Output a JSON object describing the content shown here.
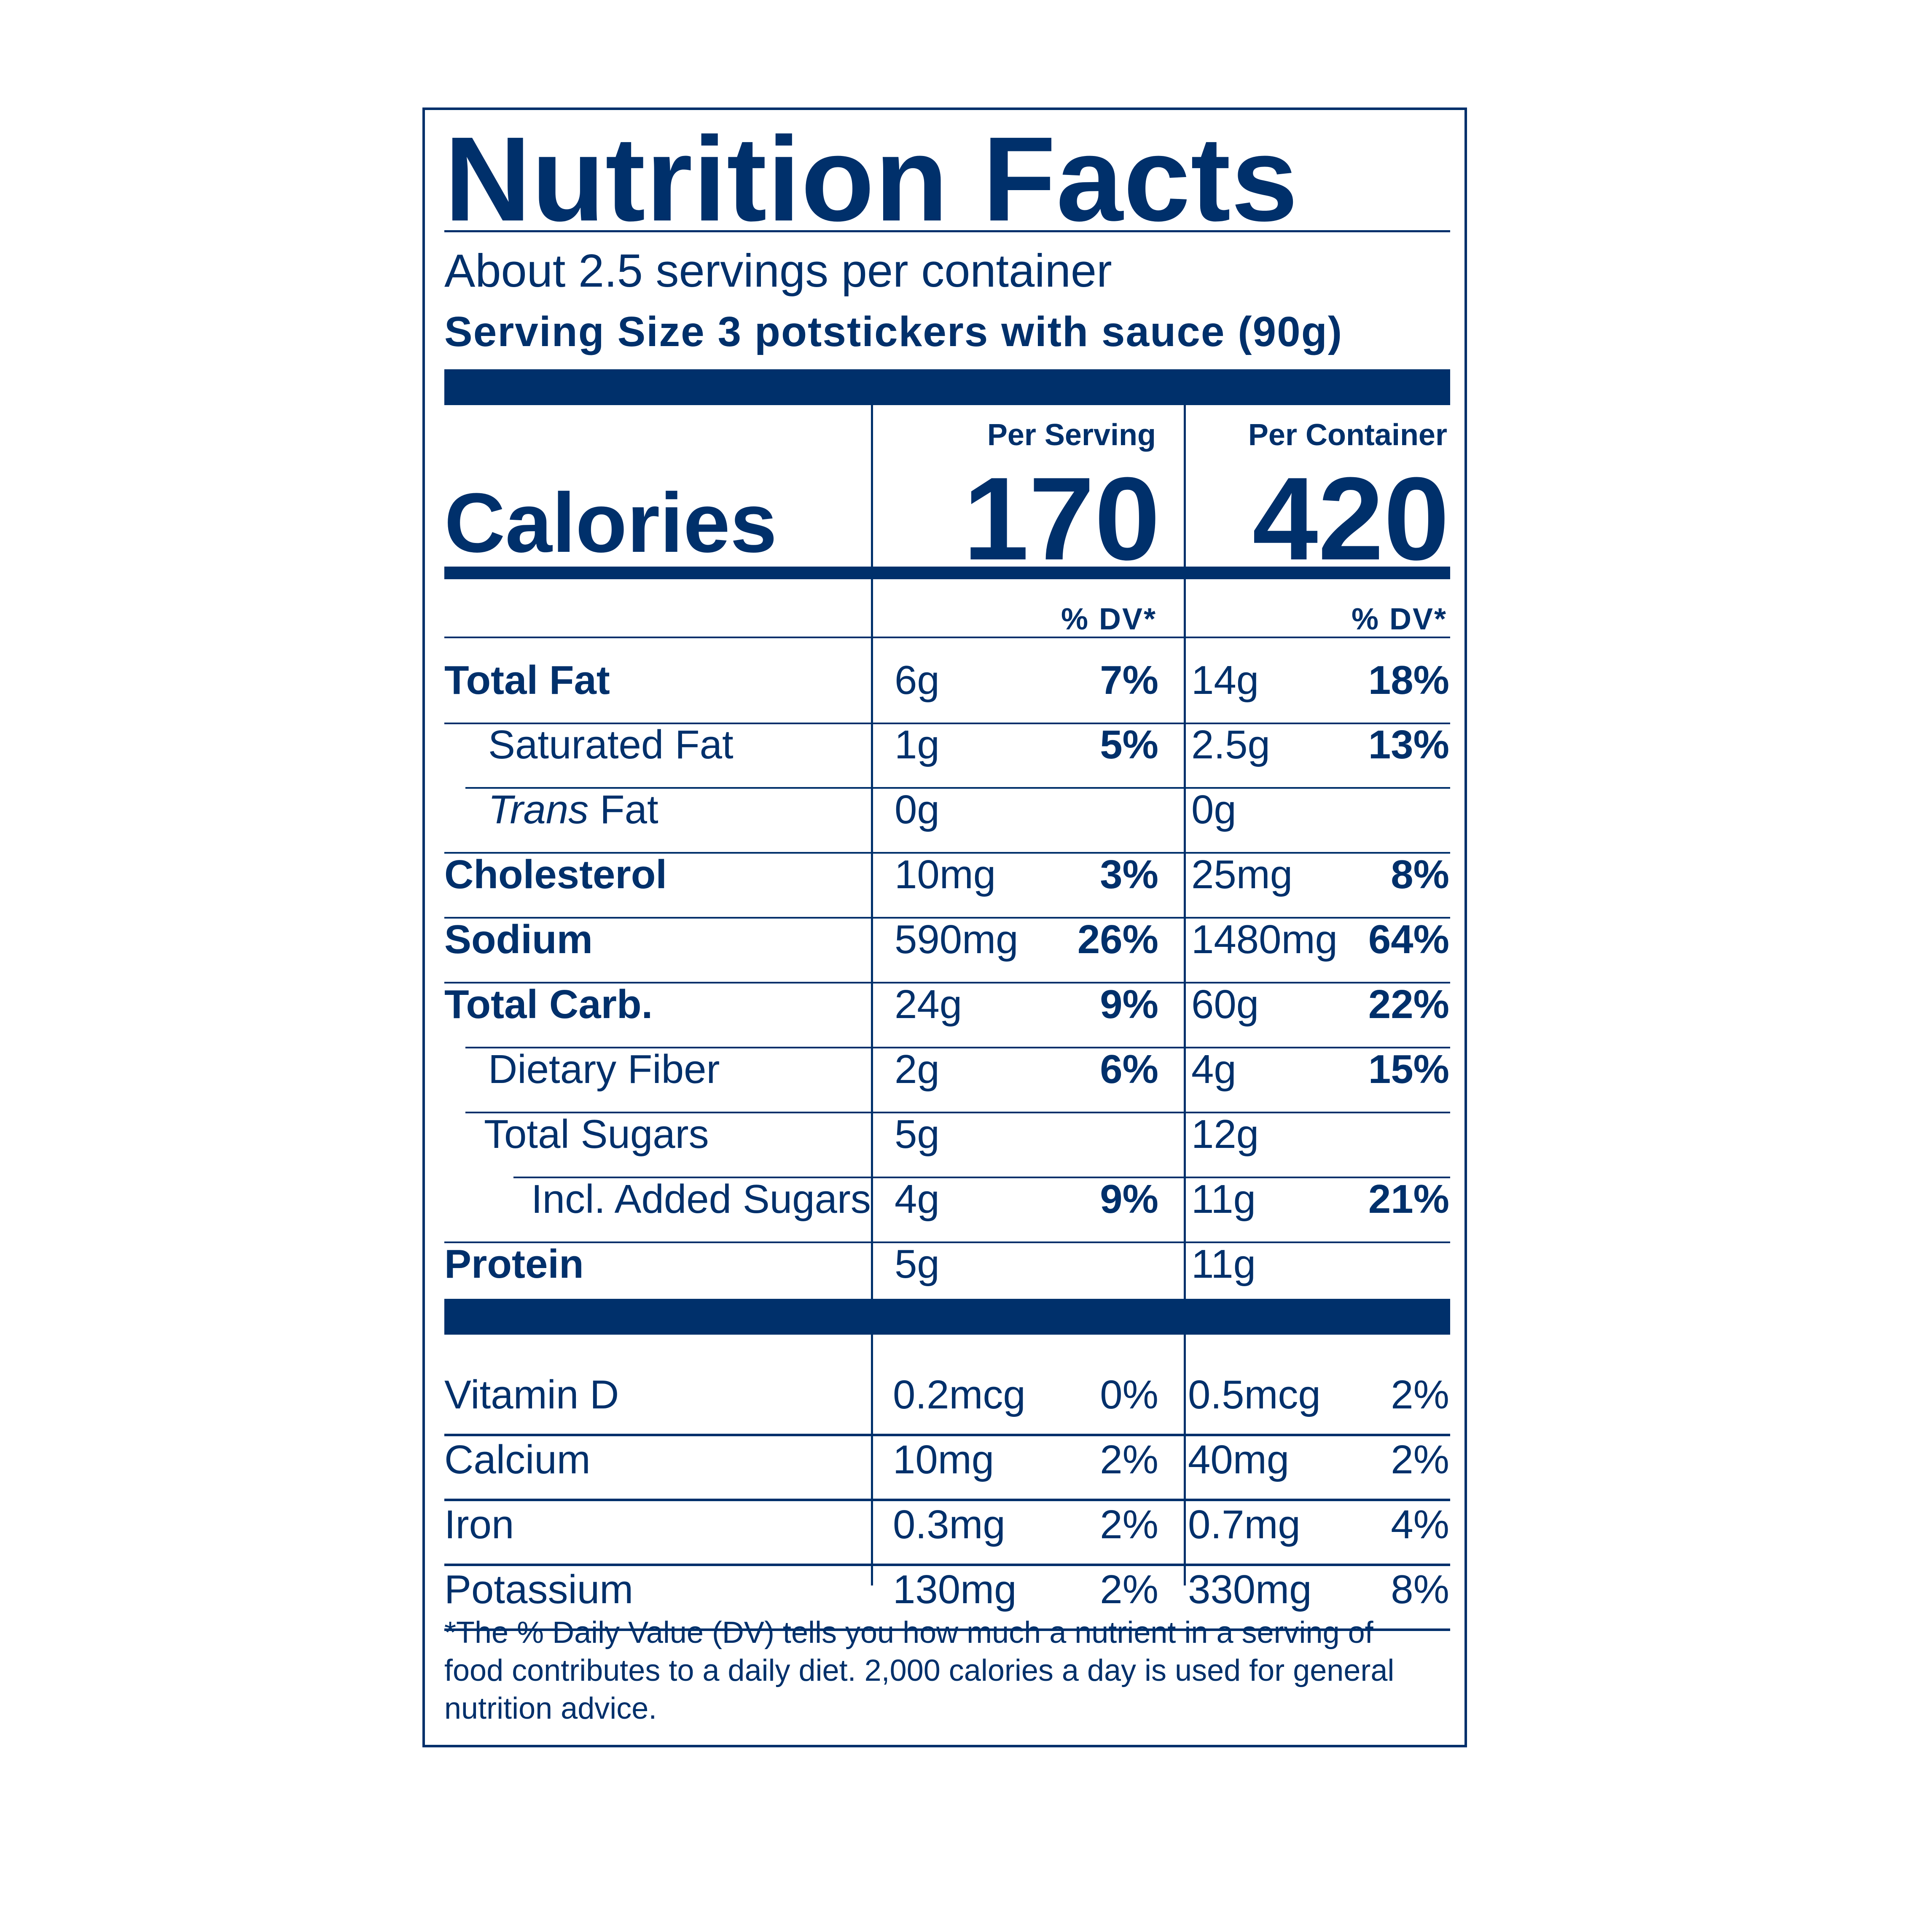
{
  "title": "Nutrition Facts",
  "servings_per_container": "About 2.5 servings per container",
  "serving_size": "Serving Size  3 potstickers with sauce (90g)",
  "columns": {
    "per_serving": "Per Serving",
    "per_container": "Per Container",
    "dv_header": "% DV*"
  },
  "calories": {
    "label": "Calories",
    "per_serving": "170",
    "per_container": "420"
  },
  "nutrients": [
    {
      "name": "Total Fat",
      "serving_amount": "6g",
      "serving_dv": "7%",
      "container_amount": "14g",
      "container_dv": "18%"
    },
    {
      "name": "Saturated Fat",
      "serving_amount": "1g",
      "serving_dv": "5%",
      "container_amount": "2.5g",
      "container_dv": "13%"
    },
    {
      "name_italic": "Trans",
      "name_rest": " Fat",
      "serving_amount": "0g",
      "serving_dv": "",
      "container_amount": "0g",
      "container_dv": ""
    },
    {
      "name": "Cholesterol",
      "serving_amount": "10mg",
      "serving_dv": "3%",
      "container_amount": "25mg",
      "container_dv": "8%"
    },
    {
      "name": "Sodium",
      "serving_amount": "590mg",
      "serving_dv": "26%",
      "container_amount": "1480mg",
      "container_dv": "64%"
    },
    {
      "name": "Total Carb.",
      "serving_amount": "24g",
      "serving_dv": "9%",
      "container_amount": "60g",
      "container_dv": "22%"
    },
    {
      "name": "Dietary Fiber",
      "serving_amount": "2g",
      "serving_dv": "6%",
      "container_amount": "4g",
      "container_dv": "15%"
    },
    {
      "name": "Total Sugars",
      "serving_amount": "5g",
      "serving_dv": "",
      "container_amount": "12g",
      "container_dv": ""
    },
    {
      "name": "Incl. Added Sugars",
      "serving_amount": "4g",
      "serving_dv": "9%",
      "container_amount": "11g",
      "container_dv": "21%"
    },
    {
      "name": "Protein",
      "serving_amount": "5g",
      "serving_dv": "",
      "container_amount": "11g",
      "container_dv": ""
    }
  ],
  "vitamins": [
    {
      "name": "Vitamin D",
      "serving_amount": "0.2mcg",
      "serving_dv": "0%",
      "container_amount": "0.5mcg",
      "container_dv": "2%"
    },
    {
      "name": "Calcium",
      "serving_amount": "10mg",
      "serving_dv": "2%",
      "container_amount": "40mg",
      "container_dv": "2%"
    },
    {
      "name": "Iron",
      "serving_amount": "0.3mg",
      "serving_dv": "2%",
      "container_amount": "0.7mg",
      "container_dv": "4%"
    },
    {
      "name": "Potassium",
      "serving_amount": "130mg",
      "serving_dv": "2%",
      "container_amount": "330mg",
      "container_dv": "8%"
    }
  ],
  "footnote": "*The % Daily Value (DV) tells you how much a nutrient in a serving of food contributes to a daily diet. 2,000 calories a day is used for general nutrition advice."
}
